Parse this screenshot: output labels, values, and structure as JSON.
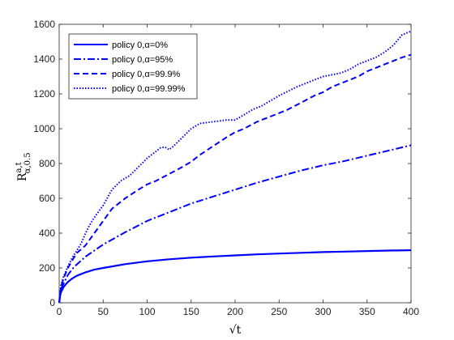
{
  "chart_data": {
    "type": "line",
    "title": "",
    "xlabel": "√t",
    "ylabel": {
      "base": "R",
      "sup": "a,t",
      "sub": "α,0.5"
    },
    "xlim": [
      0,
      400
    ],
    "ylim": [
      0,
      1600
    ],
    "xticks": [
      0,
      50,
      100,
      150,
      200,
      250,
      300,
      350,
      400
    ],
    "yticks": [
      0,
      200,
      400,
      600,
      800,
      1000,
      1200,
      1400,
      1600
    ],
    "grid": false,
    "legend_position": "top-left",
    "color": "#0000ff",
    "series": [
      {
        "name": "policy 0,α=0%",
        "style": "solid",
        "x": [
          0,
          1,
          2,
          5,
          10,
          15,
          20,
          30,
          40,
          50,
          75,
          100,
          125,
          150,
          175,
          200,
          225,
          250,
          275,
          300,
          325,
          350,
          375,
          400
        ],
        "y": [
          0,
          40,
          60,
          90,
          120,
          140,
          155,
          175,
          190,
          200,
          222,
          238,
          250,
          259,
          266,
          272,
          278,
          283,
          287,
          291,
          294,
          297,
          300,
          302
        ]
      },
      {
        "name": "policy 0,α=95%",
        "style": "dashdot",
        "x": [
          0,
          2,
          5,
          10,
          15,
          20,
          30,
          40,
          50,
          75,
          100,
          125,
          150,
          175,
          200,
          225,
          250,
          275,
          300,
          325,
          350,
          375,
          400
        ],
        "y": [
          0,
          80,
          110,
          160,
          195,
          220,
          265,
          300,
          335,
          405,
          470,
          520,
          570,
          610,
          650,
          690,
          725,
          760,
          790,
          815,
          845,
          875,
          905
        ]
      },
      {
        "name": "policy 0,α=99.9%",
        "style": "dashed",
        "x": [
          0,
          2,
          5,
          10,
          15,
          20,
          30,
          40,
          50,
          60,
          75,
          90,
          100,
          110,
          125,
          140,
          150,
          160,
          175,
          190,
          200,
          210,
          225,
          240,
          250,
          260,
          275,
          290,
          300,
          310,
          325,
          340,
          350,
          360,
          375,
          390,
          400
        ],
        "y": [
          0,
          90,
          140,
          200,
          245,
          285,
          330,
          400,
          470,
          540,
          600,
          650,
          680,
          700,
          740,
          780,
          810,
          850,
          900,
          950,
          980,
          1000,
          1040,
          1070,
          1090,
          1110,
          1150,
          1190,
          1210,
          1240,
          1270,
          1300,
          1330,
          1350,
          1380,
          1410,
          1425
        ]
      },
      {
        "name": "policy 0,α=99.99%",
        "style": "dotted",
        "x": [
          0,
          2,
          5,
          10,
          15,
          20,
          25,
          30,
          35,
          40,
          50,
          60,
          70,
          80,
          90,
          100,
          110,
          115,
          120,
          125,
          130,
          140,
          150,
          160,
          175,
          190,
          200,
          210,
          220,
          230,
          250,
          270,
          285,
          300,
          310,
          320,
          330,
          340,
          350,
          360,
          370,
          380,
          390,
          400
        ],
        "y": [
          0,
          100,
          150,
          210,
          260,
          300,
          340,
          400,
          450,
          490,
          560,
          650,
          700,
          730,
          780,
          830,
          870,
          890,
          895,
          880,
          900,
          950,
          1000,
          1030,
          1040,
          1050,
          1050,
          1080,
          1110,
          1130,
          1190,
          1240,
          1270,
          1300,
          1310,
          1320,
          1340,
          1370,
          1390,
          1410,
          1440,
          1480,
          1540,
          1560
        ]
      }
    ]
  }
}
